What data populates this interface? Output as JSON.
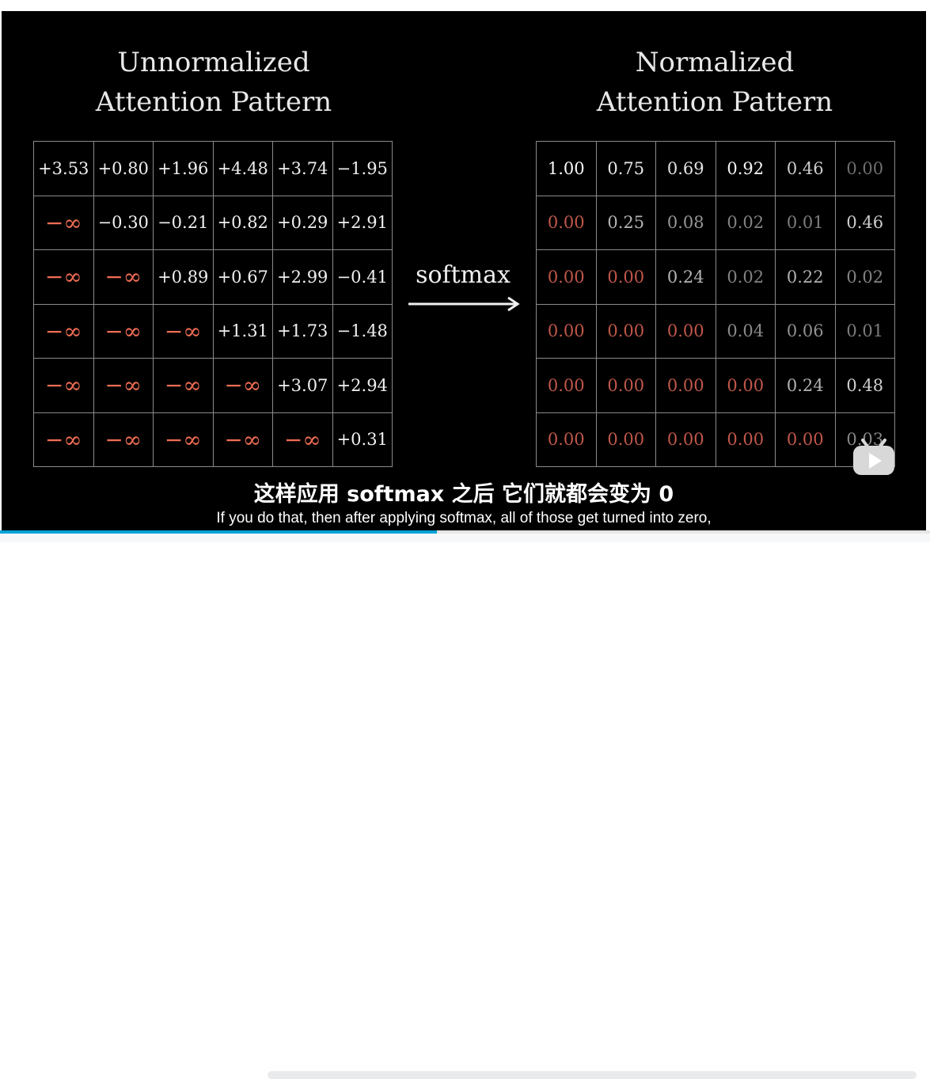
{
  "left_title": {
    "line1": "Unnormalized",
    "line2": "Attention Pattern"
  },
  "right_title": {
    "line1": "Normalized",
    "line2": "Attention Pattern"
  },
  "arrow_label": "softmax",
  "left_grid": [
    [
      "+3.53",
      "+0.80",
      "+1.96",
      "+4.48",
      "+3.74",
      "−1.95"
    ],
    [
      "−∞",
      "−0.30",
      "−0.21",
      "+0.82",
      "+0.29",
      "+2.91"
    ],
    [
      "−∞",
      "−∞",
      "+0.89",
      "+0.67",
      "+2.99",
      "−0.41"
    ],
    [
      "−∞",
      "−∞",
      "−∞",
      "+1.31",
      "+1.73",
      "−1.48"
    ],
    [
      "−∞",
      "−∞",
      "−∞",
      "−∞",
      "+3.07",
      "+2.94"
    ],
    [
      "−∞",
      "−∞",
      "−∞",
      "−∞",
      "−∞",
      "+0.31"
    ]
  ],
  "right_grid": [
    [
      "1.00",
      "0.75",
      "0.69",
      "0.92",
      "0.46",
      "0.00"
    ],
    [
      "0.00",
      "0.25",
      "0.08",
      "0.02",
      "0.01",
      "0.46"
    ],
    [
      "0.00",
      "0.00",
      "0.24",
      "0.02",
      "0.22",
      "0.02"
    ],
    [
      "0.00",
      "0.00",
      "0.00",
      "0.04",
      "0.06",
      "0.01"
    ],
    [
      "0.00",
      "0.00",
      "0.00",
      "0.00",
      "0.24",
      "0.48"
    ],
    [
      "0.00",
      "0.00",
      "0.00",
      "0.00",
      "0.00",
      "0.03"
    ]
  ],
  "right_masked": [
    [
      false,
      false,
      false,
      false,
      false,
      false
    ],
    [
      true,
      false,
      false,
      false,
      false,
      false
    ],
    [
      true,
      true,
      false,
      false,
      false,
      false
    ],
    [
      true,
      true,
      true,
      false,
      false,
      false
    ],
    [
      true,
      true,
      true,
      true,
      false,
      false
    ],
    [
      true,
      true,
      true,
      true,
      true,
      false
    ]
  ],
  "right_values": [
    [
      1.0,
      0.75,
      0.69,
      0.92,
      0.46,
      0.0
    ],
    [
      0.0,
      0.25,
      0.08,
      0.02,
      0.01,
      0.46
    ],
    [
      0.0,
      0.0,
      0.24,
      0.02,
      0.22,
      0.02
    ],
    [
      0.0,
      0.0,
      0.0,
      0.04,
      0.06,
      0.01
    ],
    [
      0.0,
      0.0,
      0.0,
      0.0,
      0.24,
      0.48
    ],
    [
      0.0,
      0.0,
      0.0,
      0.0,
      0.0,
      0.03
    ]
  ],
  "subtitle_cn": "这样应用 softmax 之后  它们就都会变为 0",
  "subtitle_en": "If you do that, then after applying softmax, all of those get turned into zero,",
  "player": {
    "progress": 0.47,
    "badge_icon": "bilibili-tv-icon"
  },
  "colors": {
    "background": "#000000",
    "infinity": "#f06d55",
    "masked_zero": "#c0574a",
    "text": "#f0f0f0",
    "progress": "#00a1d6"
  }
}
